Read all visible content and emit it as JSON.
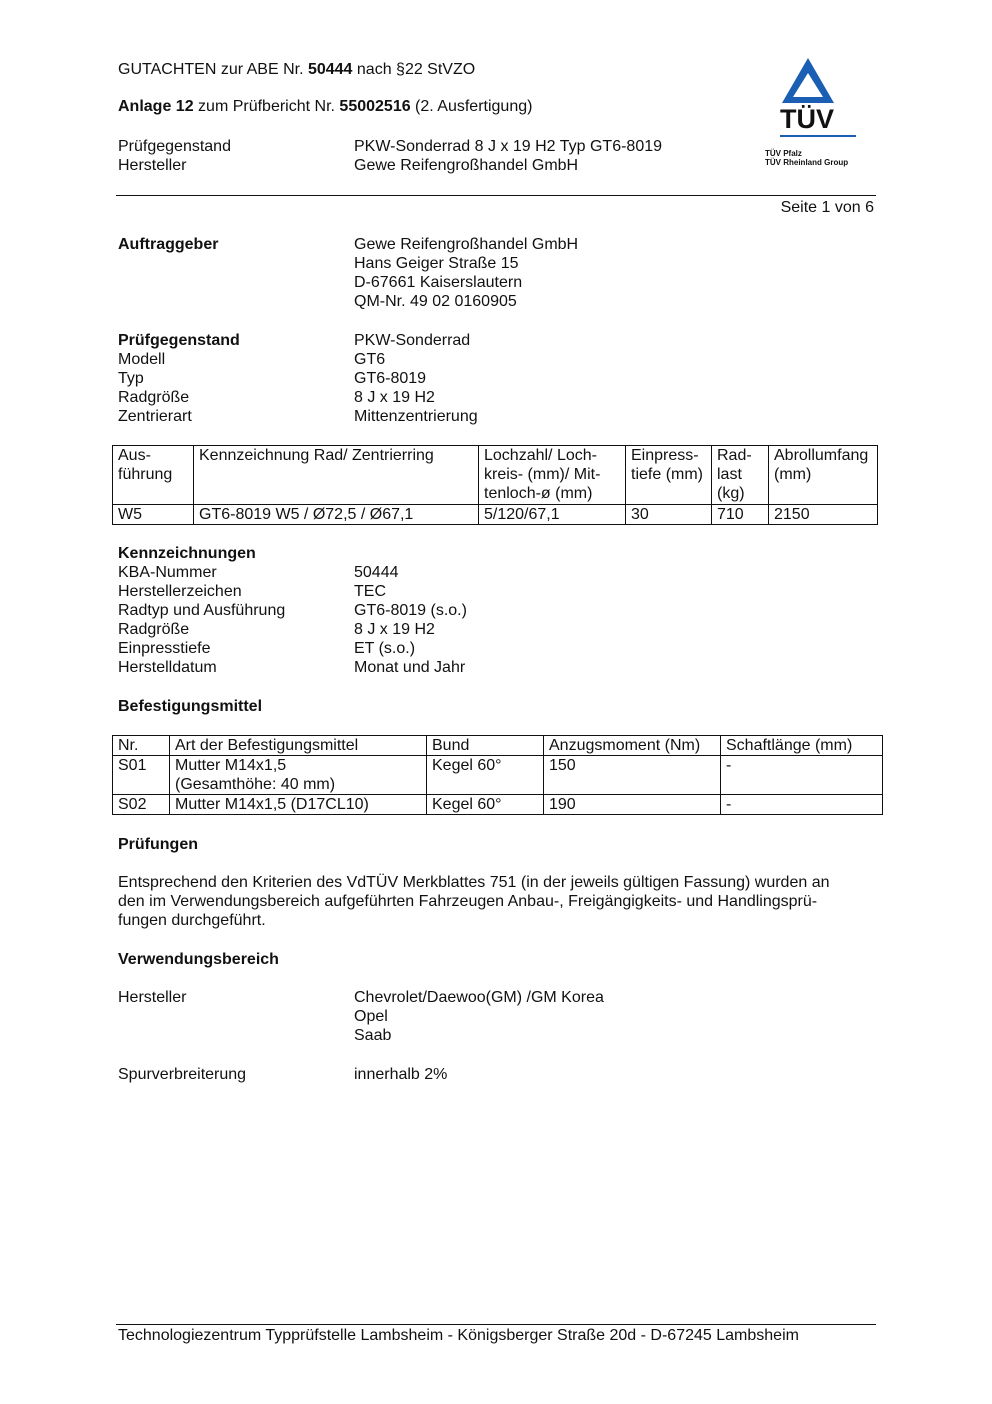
{
  "header": {
    "line1": {
      "pre": "GUTACHTEN zur ABE Nr. ",
      "num": "50444",
      "post": " nach §22 StVZO"
    },
    "line2": {
      "pre": "Anlage 12",
      "mid": " zum Prüfbericht Nr. ",
      "num": "55002516",
      "post": " (2. Ausfertigung)"
    },
    "rows": [
      {
        "label": "Prüfgegenstand",
        "value": "PKW-Sonderrad 8 J x 19 H2 Typ GT6-8019"
      },
      {
        "label": "Hersteller",
        "value": "Gewe Reifengroßhandel GmbH"
      }
    ],
    "page": "Seite 1 von 6"
  },
  "logo": {
    "text": "TÜV",
    "sub1": "TÜV Pfalz",
    "sub2": "TÜV Rheinland Group",
    "color": "#1a5fb4"
  },
  "auftraggeber": {
    "label": "Auftraggeber",
    "lines": [
      "Gewe Reifengroßhandel GmbH",
      "Hans Geiger Straße 15",
      "D-67661 Kaiserslautern",
      "QM-Nr. 49 02 0160905"
    ]
  },
  "pruefgegenstand": {
    "label": "Prüfgegenstand",
    "value": "PKW-Sonderrad",
    "rows": [
      {
        "label": "Modell",
        "value": "GT6"
      },
      {
        "label": "Typ",
        "value": "GT6-8019"
      },
      {
        "label": "Radgröße",
        "value": "8 J x 19 H2"
      },
      {
        "label": "Zentrierart",
        "value": "Mittenzentrierung"
      }
    ]
  },
  "table1": {
    "headers": [
      "Aus- führung",
      "Kennzeichnung Rad/ Zentrierring",
      "Lochzahl/ Loch- kreis- (mm)/ Mit- tenloch-ø (mm)",
      "Einpress- tiefe (mm)",
      "Rad- last (kg)",
      "Abrollumfang (mm)"
    ],
    "rows": [
      [
        "W5",
        "GT6-8019 W5 / Ø72,5 / Ø67,1",
        "5/120/67,1",
        "30",
        "710",
        "2150"
      ]
    ]
  },
  "kennzeichnungen": {
    "title": "Kennzeichnungen",
    "rows": [
      {
        "label": "KBA-Nummer",
        "value": "50444"
      },
      {
        "label": "Herstellerzeichen",
        "value": "TEC"
      },
      {
        "label": "Radtyp und Ausführung",
        "value": "GT6-8019 (s.o.)"
      },
      {
        "label": "Radgröße",
        "value": "8 J x 19 H2"
      },
      {
        "label": "Einpresstiefe",
        "value": "ET (s.o.)"
      },
      {
        "label": "Herstelldatum",
        "value": "Monat und Jahr"
      }
    ]
  },
  "befestigung": {
    "title": "Befestigungsmittel",
    "headers": [
      "Nr.",
      "Art der Befestigungsmittel",
      "Bund",
      "Anzugsmoment (Nm)",
      "Schaftlänge (mm)"
    ],
    "rows": [
      [
        "S01",
        "Mutter M14x1,5 (Gesamthöhe: 40 mm)",
        "Kegel 60°",
        "150",
        "-"
      ],
      [
        "S02",
        "Mutter M14x1,5 (D17CL10)",
        "Kegel 60°",
        "190",
        "-"
      ]
    ]
  },
  "pruefungen": {
    "title": "Prüfungen",
    "lines": [
      "Entsprechend den Kriterien des VdTÜV Merkblattes 751 (in der jeweils gültigen Fassung) wurden an",
      "den im Verwendungsbereich aufgeführten Fahrzeugen Anbau-, Freigängigkeits- und Handlingsprü-",
      "fungen durchgeführt."
    ]
  },
  "verwendung": {
    "title": "Verwendungsbereich",
    "hersteller_label": "Hersteller",
    "hersteller": [
      "Chevrolet/Daewoo(GM) /GM Korea",
      "Opel",
      "Saab"
    ],
    "spur_label": "Spurverbreiterung",
    "spur": "innerhalb 2%"
  },
  "footer": "Technologiezentrum Typprüfstelle Lambsheim - Königsberger Straße 20d - D-67245 Lambsheim"
}
